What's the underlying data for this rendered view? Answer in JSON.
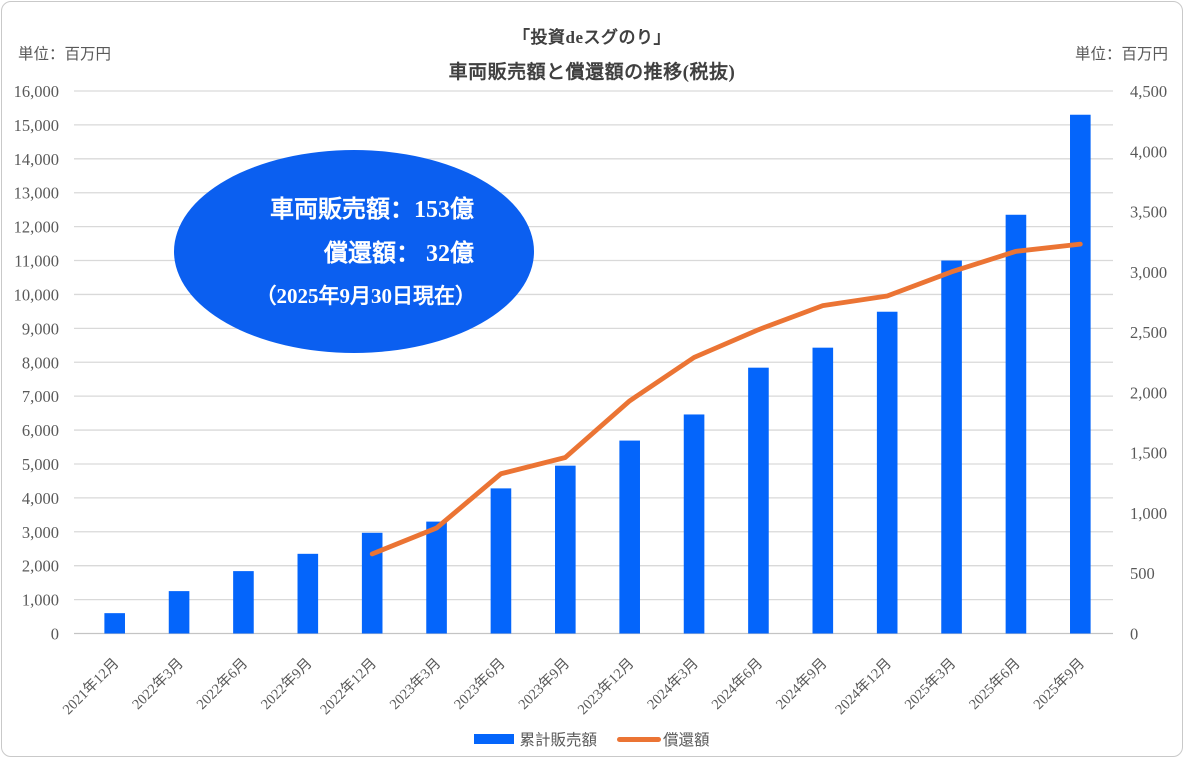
{
  "header": {
    "title_line1": "「投資deスグのり」",
    "title_line2": "車両販売額と償還額の推移(税抜)",
    "unit_left": "単位：百万円",
    "unit_right": "単位：百万円"
  },
  "callout": {
    "line1": "車両販売額：153億",
    "line2": "償還額： 32億",
    "line3": "（2025年9月30日現在）",
    "bg_color": "#0B5FF0",
    "text_color": "#FFFFFF"
  },
  "legend": [
    {
      "label": "累計販売額",
      "marker": "bar-swatch",
      "color": "#0465FB"
    },
    {
      "label": "償還額",
      "marker": "line-swatch",
      "color": "#EB7434"
    }
  ],
  "chart_data": {
    "type": "bar",
    "subtype": "combo-bar-line",
    "title": "車両販売額と償還額の推移(税抜)",
    "categories": [
      "2021年12月",
      "2022年3月",
      "2022年6月",
      "2022年9月",
      "2022年12月",
      "2023年3月",
      "2023年6月",
      "2023年9月",
      "2023年12月",
      "2024年3月",
      "2024年6月",
      "2024年9月",
      "2024年12月",
      "2025年3月",
      "2025年6月",
      "2025年9月"
    ],
    "series": [
      {
        "name": "累計販売額",
        "type": "bar",
        "axis": "left",
        "color": "#0465FB",
        "values": [
          600,
          1250,
          1840,
          2350,
          2970,
          3300,
          4280,
          4950,
          5690,
          6460,
          7840,
          8430,
          9490,
          11000,
          12350,
          15300
        ]
      },
      {
        "name": "償還額",
        "type": "line",
        "axis": "right",
        "color": "#EB7434",
        "values": [
          null,
          null,
          null,
          null,
          660,
          875,
          1325,
          1460,
          1930,
          2290,
          2520,
          2720,
          2800,
          3000,
          3170,
          3230
        ]
      }
    ],
    "left_axis": {
      "unit": "百万円",
      "min": 0,
      "max": 16000,
      "step": 1000,
      "tick_labels": [
        "0",
        "1,000",
        "2,000",
        "3,000",
        "4,000",
        "5,000",
        "6,000",
        "7,000",
        "8,000",
        "9,000",
        "10,000",
        "11,000",
        "12,000",
        "13,000",
        "14,000",
        "15,000",
        "16,000"
      ]
    },
    "right_axis": {
      "unit": "百万円",
      "min": 0,
      "max": 4500,
      "step": 500,
      "tick_labels": [
        "0",
        "500",
        "1,000",
        "1,500",
        "2,000",
        "2,500",
        "3,000",
        "3,500",
        "4,000",
        "4,500"
      ]
    },
    "grid": true,
    "legend_position": "bottom",
    "grid_color": "#D9D9D9",
    "baseline_color": "#C4C4C4",
    "axis_text_color": "#595959"
  }
}
